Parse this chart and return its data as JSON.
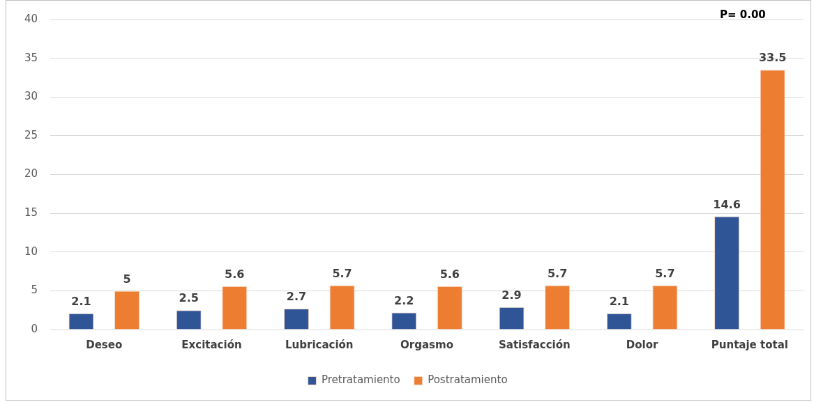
{
  "chart_data": {
    "type": "bar",
    "categories": [
      "Deseo",
      "Excitación",
      "Lubricación",
      "Orgasmo",
      "Satisfacción",
      "Dolor",
      "Puntaje total"
    ],
    "series": [
      {
        "name": "Pretratamiento",
        "color": "#2f5597",
        "values": [
          2.1,
          2.5,
          2.7,
          2.2,
          2.9,
          2.1,
          14.6
        ]
      },
      {
        "name": "Postratamiento",
        "color": "#ed7d31",
        "values": [
          5,
          5.6,
          5.7,
          5.6,
          5.7,
          5.7,
          33.5
        ]
      }
    ],
    "ylim": [
      0,
      40
    ],
    "yticks": [
      0,
      5,
      10,
      15,
      20,
      25,
      30,
      35,
      40
    ],
    "grid": "y",
    "legend": "bottom",
    "data_labels": true,
    "annotations": [
      "P= 0.00"
    ]
  }
}
